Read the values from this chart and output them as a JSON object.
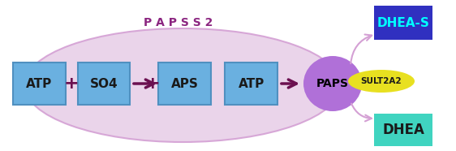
{
  "bg_color": "#ffffff",
  "ellipse_color": "#e8d0e8",
  "ellipse_edge_color": "#d4a0d4",
  "papss2_label": "P A P S S 2",
  "papss2_color": "#8B2580",
  "box_color": "#6ab0e0",
  "box_edge_color": "#5090c0",
  "box_labels": [
    "ATP",
    "SO4",
    "APS",
    "ATP"
  ],
  "box_label_color": "#1a1a1a",
  "paps_circle_color": "#b070d8",
  "paps_label": "PAPS",
  "arrow_color": "#6B1050",
  "plus_color": "#6B1050",
  "dheas_box_color": "#3030c0",
  "dheas_label": "DHEA-S",
  "dheas_label_color": "#00ffff",
  "dhea_box_color": "#40d4c0",
  "dhea_label": "DHEA",
  "dhea_label_color": "#1a1a1a",
  "sult2a2_ellipse_color": "#e8e020",
  "sult2a2_label": "SULT2A2",
  "sult2a2_label_color": "#1a1a1a",
  "curve_arrow_color": "#d4a0d4"
}
